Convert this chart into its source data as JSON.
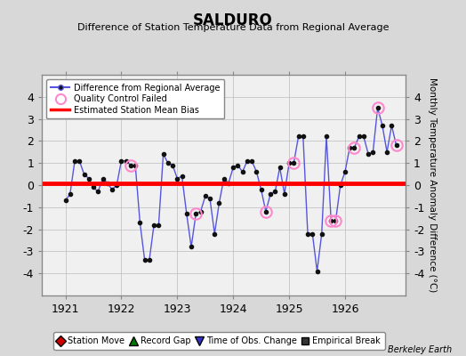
{
  "title": "SALDURO",
  "subtitle": "Difference of Station Temperature Data from Regional Average",
  "ylabel": "Monthly Temperature Anomaly Difference (°C)",
  "bias_value": 0.07,
  "ylim": [
    -5,
    5
  ],
  "xlim": [
    1920.58,
    1927.08
  ],
  "xticks": [
    1921,
    1922,
    1923,
    1924,
    1925,
    1926
  ],
  "yticks": [
    -4,
    -3,
    -2,
    -1,
    0,
    1,
    2,
    3,
    4
  ],
  "bg_color": "#d8d8d8",
  "plot_bg_color": "#f0f0f0",
  "line_color": "#5555dd",
  "marker_color": "#111111",
  "bias_color": "#ff0000",
  "qc_color": "#ff88cc",
  "berkeley_earth_text": "Berkeley Earth",
  "months": [
    1921.0,
    1921.083,
    1921.167,
    1921.25,
    1921.333,
    1921.417,
    1921.5,
    1921.583,
    1921.667,
    1921.75,
    1921.833,
    1921.917,
    1922.0,
    1922.083,
    1922.167,
    1922.25,
    1922.333,
    1922.417,
    1922.5,
    1922.583,
    1922.667,
    1922.75,
    1922.833,
    1922.917,
    1923.0,
    1923.083,
    1923.167,
    1923.25,
    1923.333,
    1923.417,
    1923.5,
    1923.583,
    1923.667,
    1923.75,
    1923.833,
    1923.917,
    1924.0,
    1924.083,
    1924.167,
    1924.25,
    1924.333,
    1924.417,
    1924.5,
    1924.583,
    1924.667,
    1924.75,
    1924.833,
    1924.917,
    1925.0,
    1925.083,
    1925.167,
    1925.25,
    1925.333,
    1925.417,
    1925.5,
    1925.583,
    1925.667,
    1925.75,
    1925.833,
    1925.917,
    1926.0,
    1926.083,
    1926.167,
    1926.25,
    1926.333,
    1926.417,
    1926.5,
    1926.583,
    1926.667,
    1926.75,
    1926.833,
    1926.917
  ],
  "values": [
    -0.7,
    -0.4,
    1.1,
    1.1,
    0.5,
    0.3,
    -0.1,
    -0.3,
    0.3,
    0.1,
    -0.2,
    0.0,
    1.1,
    1.1,
    0.9,
    0.9,
    -1.7,
    -3.4,
    -3.4,
    -1.8,
    -1.8,
    1.4,
    1.0,
    0.9,
    0.3,
    0.4,
    -1.3,
    -2.8,
    -1.3,
    -1.2,
    -0.5,
    -0.6,
    -2.2,
    -0.8,
    0.3,
    0.1,
    0.8,
    0.9,
    0.6,
    1.1,
    1.1,
    0.6,
    -0.2,
    -1.2,
    -0.4,
    -0.3,
    0.8,
    -0.4,
    1.0,
    1.0,
    2.2,
    2.2,
    -2.2,
    -2.2,
    -3.9,
    -2.2,
    2.2,
    -1.6,
    -1.6,
    0.0,
    0.6,
    1.7,
    1.7,
    2.2,
    2.2,
    1.4,
    1.5,
    3.5,
    2.7,
    1.5,
    2.7,
    1.8
  ],
  "qc_failed_indices": [
    14,
    28,
    43,
    49,
    57,
    58,
    62,
    67,
    71
  ]
}
